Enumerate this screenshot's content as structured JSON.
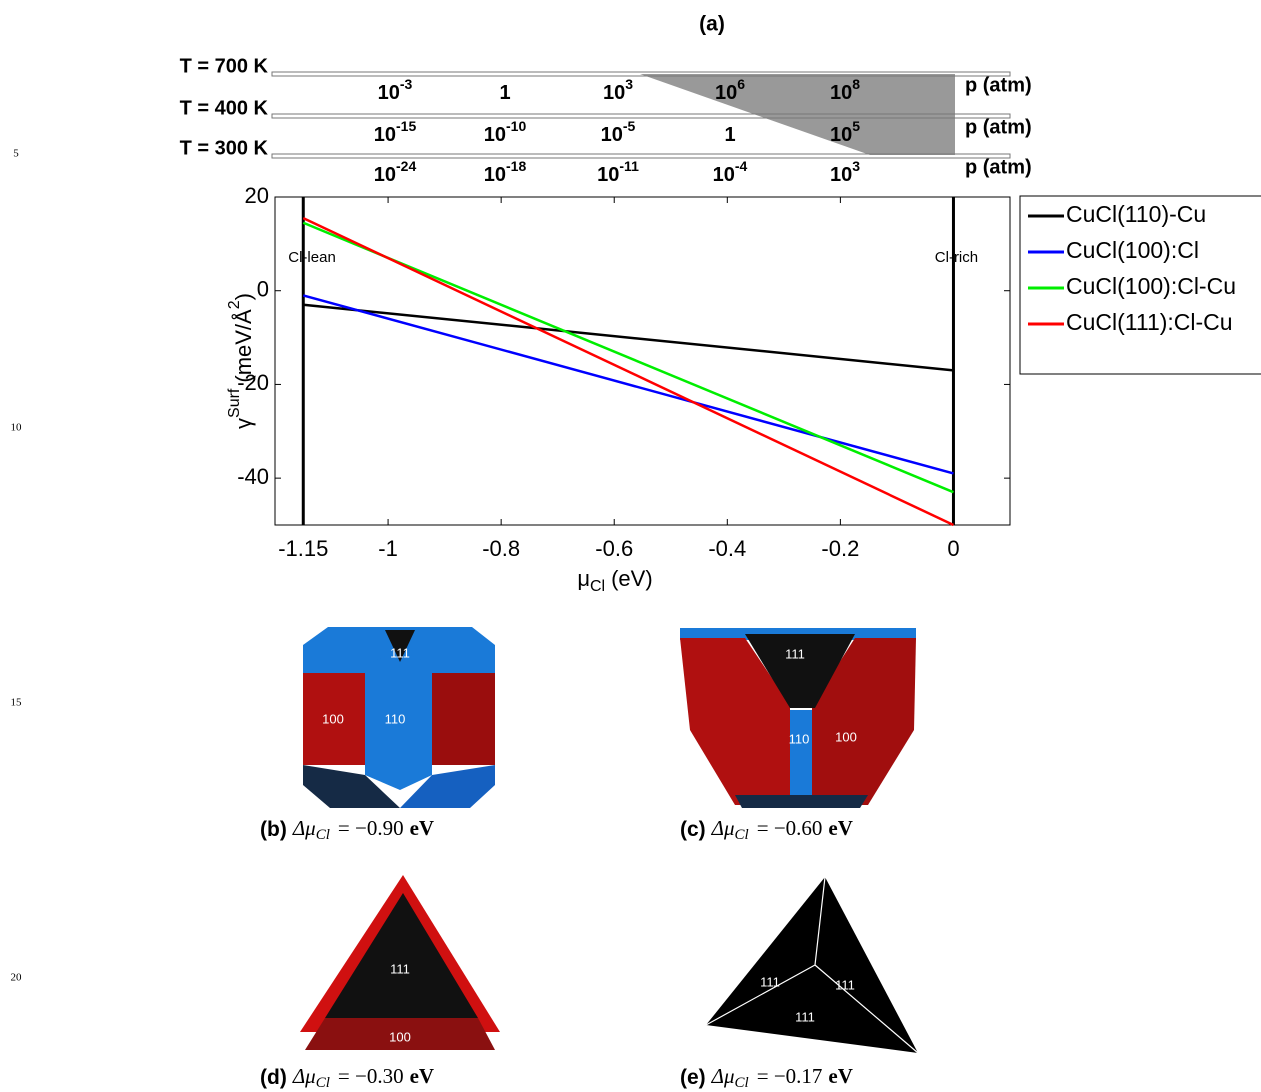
{
  "chart_data": {
    "type": "line",
    "title": "(a)",
    "xlabel": {
      "symbol": "μ",
      "sub": "Cl",
      "unit": "(eV)"
    },
    "ylabel": {
      "symbol": "γ",
      "sup": "Surf",
      "unit": "(meV/Å",
      "unit_sup": "2",
      "unit_end": ")"
    },
    "x": [
      -1.15,
      0
    ],
    "series": [
      {
        "name": "CuCl(110)-Cu",
        "color": "#000000",
        "values": [
          -3,
          -17
        ]
      },
      {
        "name": "CuCl(100):Cl",
        "color": "#0000ff",
        "values": [
          -1,
          -39
        ]
      },
      {
        "name": "CuCl(100):Cl-Cu",
        "color": "#00ee00",
        "values": [
          14.5,
          -43
        ]
      },
      {
        "name": "CuCl(111):Cl-Cu",
        "color": "#ff0000",
        "values": [
          15.5,
          -50
        ]
      }
    ],
    "xlim": [
      -1.2,
      0.1
    ],
    "xticks": [
      -1.15,
      -1,
      -0.8,
      -0.6,
      -0.4,
      -0.2,
      0
    ],
    "ylim": [
      -50,
      20
    ],
    "yticks": [
      -40,
      -20,
      0,
      20
    ],
    "annotations": [
      {
        "text": "Cl-lean",
        "x": -1.15
      },
      {
        "text": "Cl-rich",
        "x": 0
      }
    ],
    "pressure_axes": [
      {
        "temperature": "T = 700 K",
        "unit": "p (atm)",
        "ticks": [
          {
            "base": "10",
            "exp": "-3"
          },
          {
            "base": "1"
          },
          {
            "base": "10",
            "exp": "3"
          },
          {
            "base": "10",
            "exp": "6"
          },
          {
            "base": "10",
            "exp": "8"
          }
        ]
      },
      {
        "temperature": "T = 400 K",
        "unit": "p (atm)",
        "ticks": [
          {
            "base": "10",
            "exp": "-15"
          },
          {
            "base": "10",
            "exp": "-10"
          },
          {
            "base": "10",
            "exp": "-5"
          },
          {
            "base": "1"
          },
          {
            "base": "10",
            "exp": "5"
          }
        ]
      },
      {
        "temperature": "T = 300 K",
        "unit": "p (atm)",
        "ticks": [
          {
            "base": "10",
            "exp": "-24"
          },
          {
            "base": "10",
            "exp": "-18"
          },
          {
            "base": "10",
            "exp": "-11"
          },
          {
            "base": "10",
            "exp": "-4"
          },
          {
            "base": "10",
            "exp": "3"
          }
        ]
      }
    ]
  },
  "panels": [
    {
      "label": "(b)",
      "symbol": "Δμ",
      "sub": "Cl",
      "value": "= −0.90",
      "unit": "eV",
      "faces": [
        "111",
        "100",
        "110"
      ]
    },
    {
      "label": "(c)",
      "symbol": "Δμ",
      "sub": "Cl",
      "value": "= −0.60",
      "unit": "eV",
      "faces": [
        "111",
        "110",
        "100"
      ]
    },
    {
      "label": "(d)",
      "symbol": "Δμ",
      "sub": "Cl",
      "value": "= −0.30",
      "unit": "eV",
      "faces": [
        "111",
        "100"
      ]
    },
    {
      "label": "(e)",
      "symbol": "Δμ",
      "sub": "Cl",
      "value": "= −0.17",
      "unit": "eV",
      "faces": [
        "111",
        "111",
        "111"
      ]
    }
  ],
  "line_numbers": [
    "5",
    "10",
    "15",
    "20"
  ]
}
